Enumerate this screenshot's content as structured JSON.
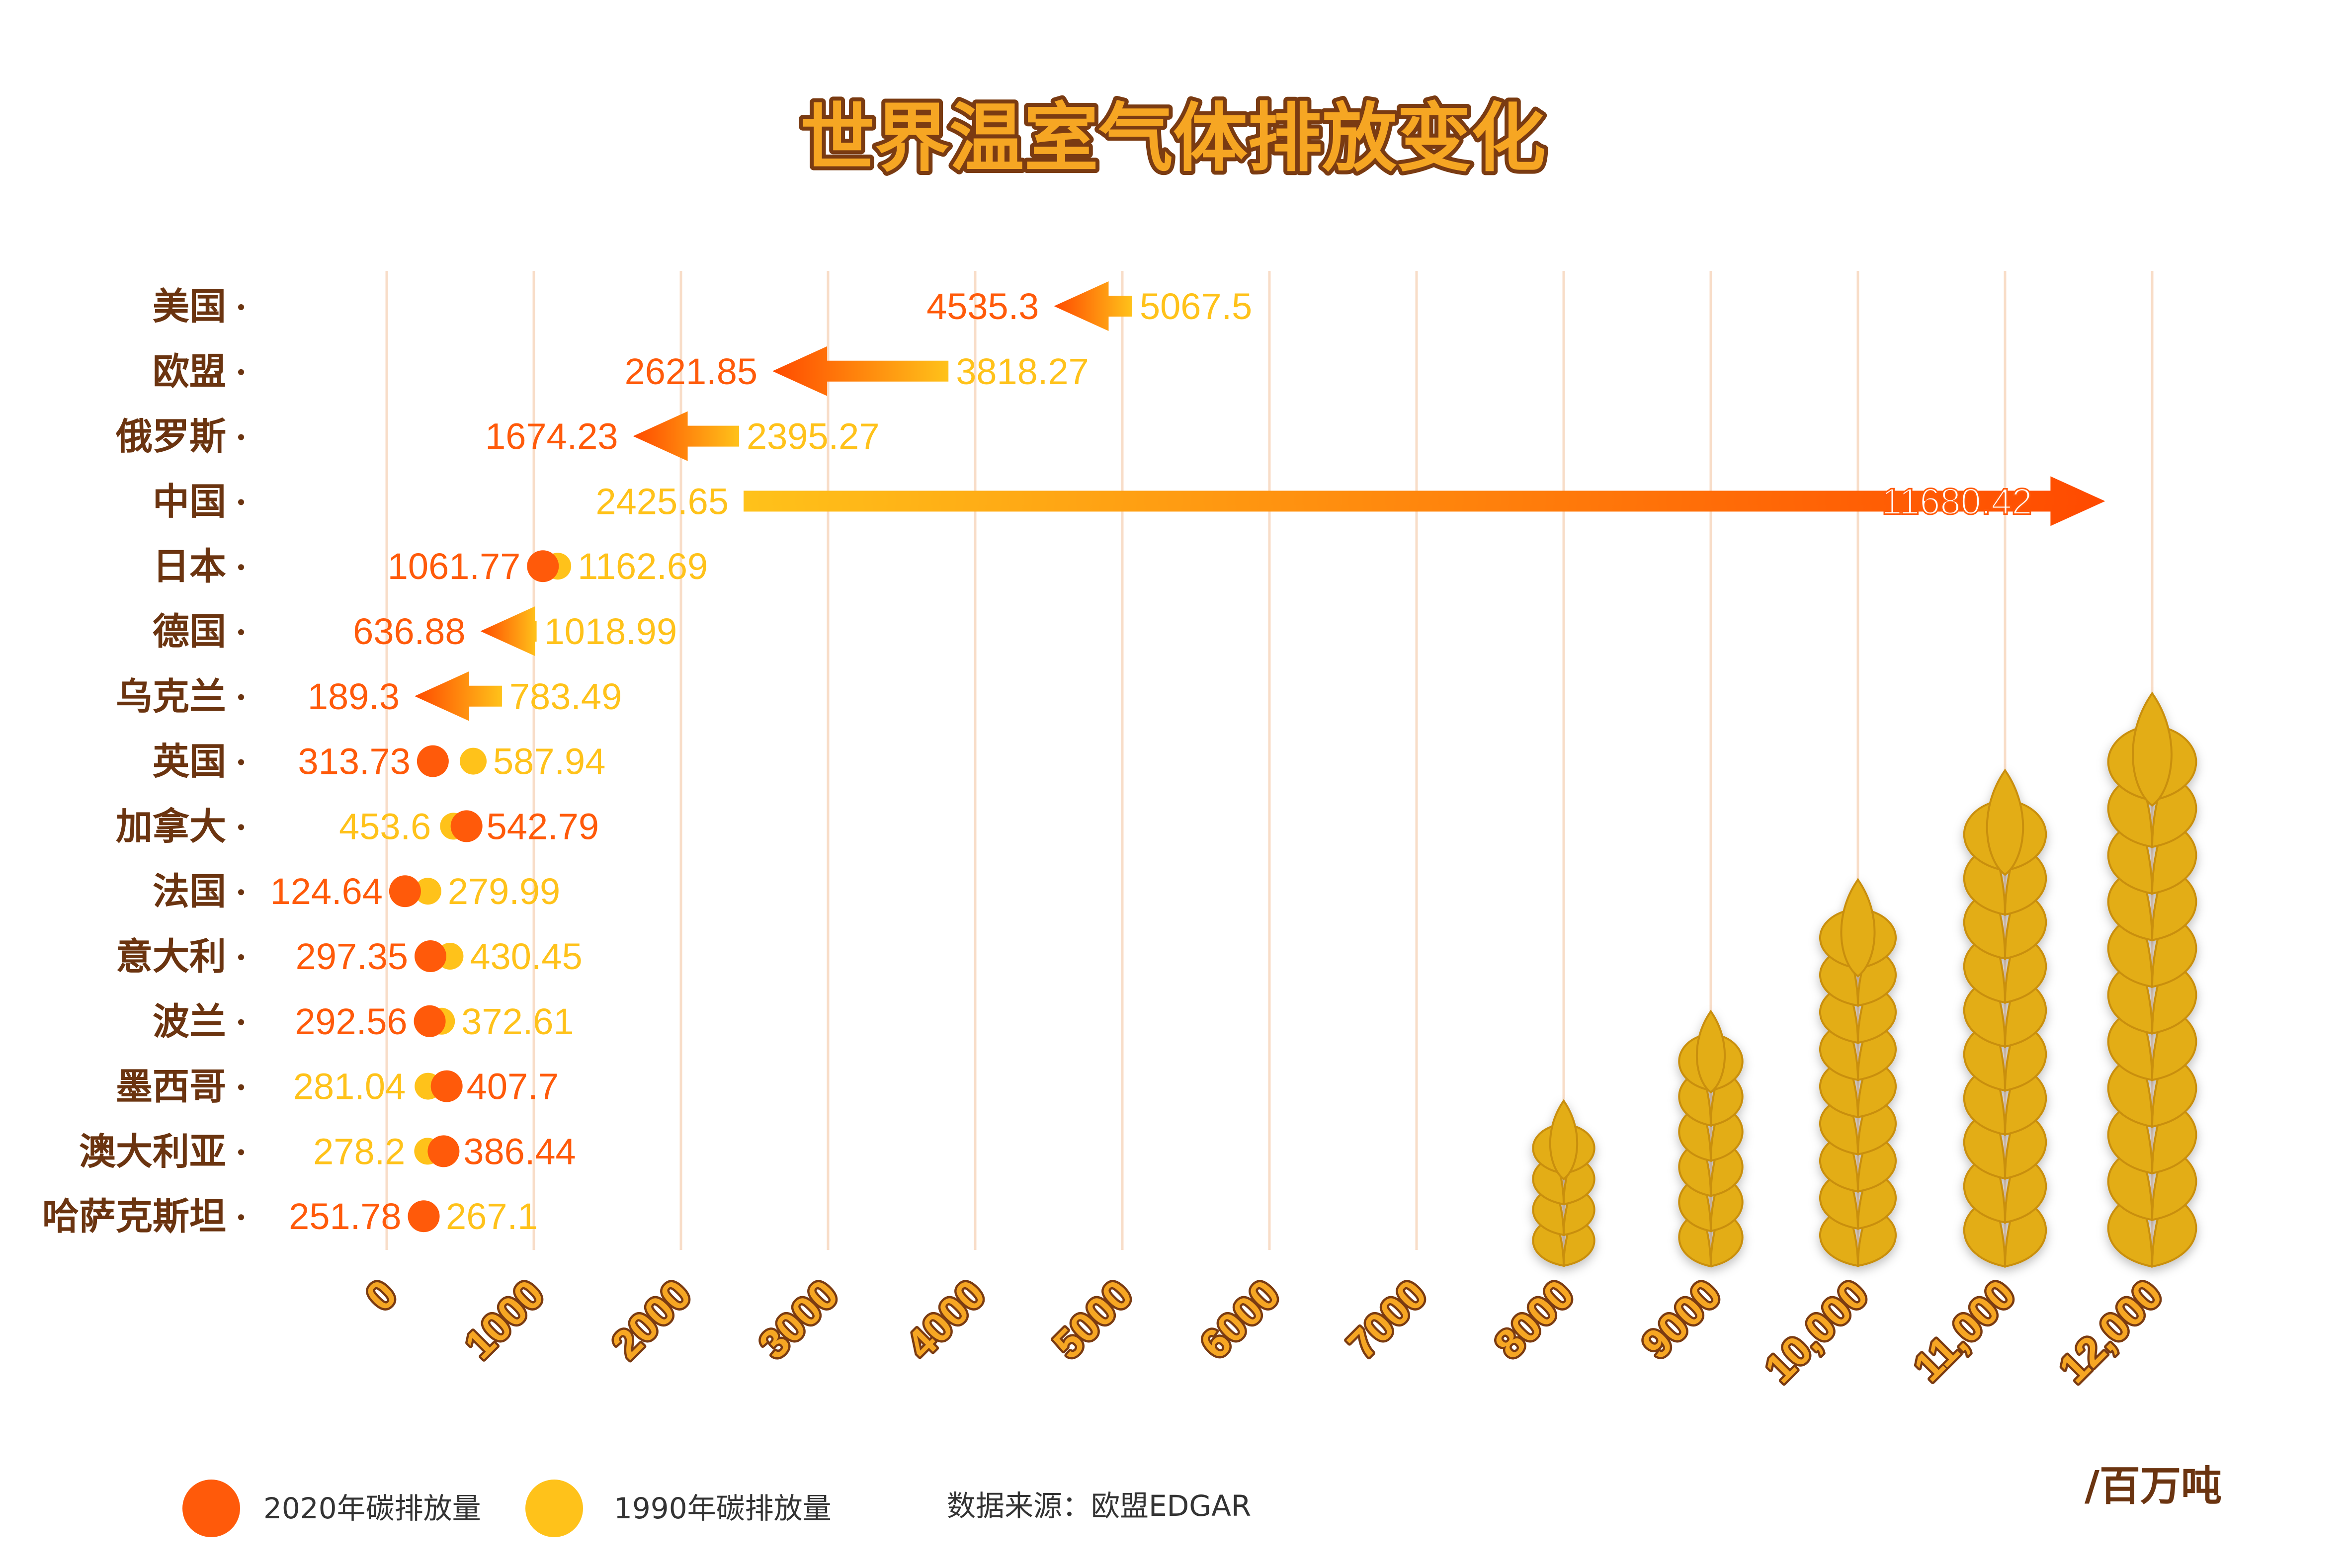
{
  "colors": {
    "c2020": "#ff5a0a",
    "c1990": "#ffc21a",
    "grid": "#f8ddc8",
    "text_brown": "#6b3410",
    "wheat": "#e3ad18"
  },
  "chart_data": {
    "type": "dumbbell-arrow",
    "title": "世界温室气体排放变化",
    "unit": "/百万吨",
    "source": "数据来源：欧盟EDGAR",
    "xlim": [
      0,
      12000
    ],
    "ticks": [
      "0",
      "1000",
      "2000",
      "3000",
      "4000",
      "5000",
      "6000",
      "7000",
      "8000",
      "9000",
      "10,000",
      "11,000",
      "12,000"
    ],
    "tick_values": [
      0,
      1000,
      2000,
      3000,
      4000,
      5000,
      6000,
      7000,
      8000,
      9000,
      10000,
      11000,
      12000
    ],
    "series": [
      {
        "name": "2020年碳排放量",
        "key": "v2020"
      },
      {
        "name": "1990年碳排放量",
        "key": "v1990"
      }
    ],
    "rows": [
      {
        "country": "美国",
        "v1990": 5067.5,
        "v2020": 4535.3,
        "l1990": "5067.5",
        "l2020": "4535.3"
      },
      {
        "country": "欧盟",
        "v1990": 3818.27,
        "v2020": 2621.85,
        "l1990": "3818.27",
        "l2020": "2621.85"
      },
      {
        "country": "俄罗斯",
        "v1990": 2395.27,
        "v2020": 1674.23,
        "l1990": "2395.27",
        "l2020": "1674.23"
      },
      {
        "country": "中国",
        "v1990": 2425.65,
        "v2020": 11680.42,
        "l1990": "2425.65",
        "l2020": "11680.42"
      },
      {
        "country": "日本",
        "v1990": 1162.69,
        "v2020": 1061.77,
        "l1990": "1162.69",
        "l2020": "1061.77"
      },
      {
        "country": "德国",
        "v1990": 1018.99,
        "v2020": 636.88,
        "l1990": "1018.99",
        "l2020": "636.88"
      },
      {
        "country": "乌克兰",
        "v1990": 783.49,
        "v2020": 189.3,
        "l1990": "783.49",
        "l2020": "189.3"
      },
      {
        "country": "英国",
        "v1990": 587.94,
        "v2020": 313.73,
        "l1990": "587.94",
        "l2020": "313.73"
      },
      {
        "country": "加拿大",
        "v1990": 453.6,
        "v2020": 542.79,
        "l1990": "453.6",
        "l2020": "542.79"
      },
      {
        "country": "法国",
        "v1990": 279.99,
        "v2020": 124.64,
        "l1990": "279.99",
        "l2020": "124.64"
      },
      {
        "country": "意大利",
        "v1990": 430.45,
        "v2020": 297.35,
        "l1990": "430.45",
        "l2020": "297.35"
      },
      {
        "country": "波兰",
        "v1990": 372.61,
        "v2020": 292.56,
        "l1990": "372.61",
        "l2020": "292.56"
      },
      {
        "country": "墨西哥",
        "v1990": 281.04,
        "v2020": 407.7,
        "l1990": "281.04",
        "l2020": "407.7"
      },
      {
        "country": "澳大利亚",
        "v1990": 278.2,
        "v2020": 386.44,
        "l1990": "278.2",
        "l2020": "386.44"
      },
      {
        "country": "哈萨克斯坦",
        "v1990": 267.1,
        "v2020": 251.78,
        "l1990": "267.1",
        "l2020": "251.78"
      }
    ]
  }
}
